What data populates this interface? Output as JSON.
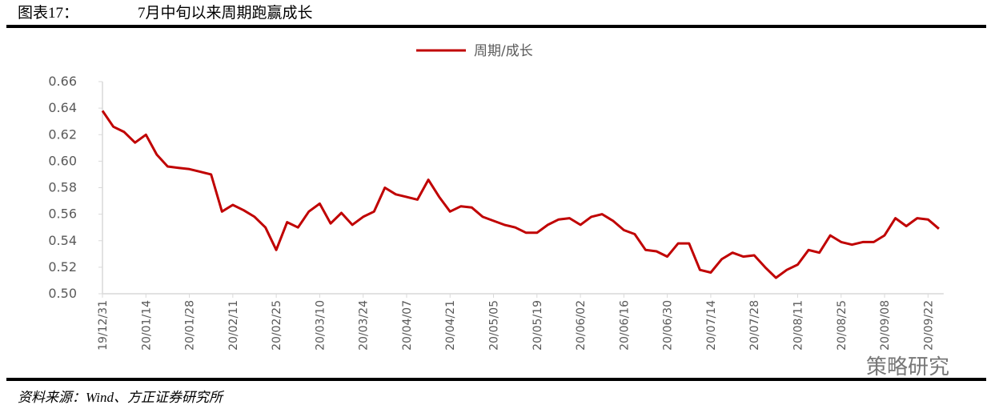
{
  "chart_data": {
    "type": "line",
    "figure_label": "图表17：",
    "title": "7月中旬以来周期跑赢成长",
    "source": "资料来源：Wind、方正证券研究所",
    "watermark": "策略研究",
    "categories": [
      "19/12/31",
      null,
      null,
      null,
      "20/01/14",
      null,
      null,
      null,
      "20/01/28",
      null,
      null,
      null,
      "20/02/11",
      null,
      null,
      null,
      "20/02/25",
      null,
      null,
      null,
      "20/03/10",
      null,
      null,
      null,
      "20/03/24",
      null,
      null,
      null,
      "20/04/07",
      null,
      null,
      null,
      "20/04/21",
      null,
      null,
      null,
      "20/05/05",
      null,
      null,
      null,
      "20/05/19",
      null,
      null,
      null,
      "20/06/02",
      null,
      null,
      null,
      "20/06/16",
      null,
      null,
      null,
      "20/06/30",
      null,
      null,
      null,
      "20/07/14",
      null,
      null,
      null,
      "20/07/28",
      null,
      null,
      null,
      "20/08/11",
      null,
      null,
      null,
      "20/08/25",
      null,
      null,
      null,
      "20/09/08",
      null,
      null,
      null,
      "20/09/22",
      null
    ],
    "series": [
      {
        "name": "周期/成长",
        "color": "#c00000",
        "values": [
          0.638,
          0.626,
          0.622,
          0.614,
          0.62,
          0.605,
          0.596,
          0.595,
          0.594,
          0.592,
          0.59,
          0.562,
          0.567,
          0.563,
          0.558,
          0.55,
          0.533,
          0.554,
          0.55,
          0.562,
          0.568,
          0.553,
          0.561,
          0.552,
          0.558,
          0.562,
          0.58,
          0.575,
          0.573,
          0.571,
          0.586,
          0.573,
          0.562,
          0.566,
          0.565,
          0.558,
          0.555,
          0.552,
          0.55,
          0.546,
          0.546,
          0.552,
          0.556,
          0.557,
          0.552,
          0.558,
          0.56,
          0.555,
          0.548,
          0.545,
          0.533,
          0.532,
          0.528,
          0.538,
          0.538,
          0.518,
          0.516,
          0.526,
          0.531,
          0.528,
          0.529,
          0.52,
          0.512,
          0.518,
          0.522,
          0.533,
          0.531,
          0.544,
          0.539,
          0.537,
          0.539,
          0.539,
          0.544,
          0.557,
          0.551,
          0.557,
          0.556,
          0.549
        ]
      }
    ],
    "ylim": [
      0.5,
      0.66
    ],
    "yticks": [
      {
        "value": 0.5,
        "label": "0.50"
      },
      0.52,
      0.54,
      0.56,
      0.58,
      {
        "value": 0.6,
        "label": "0.60"
      },
      0.62,
      0.64,
      0.66
    ],
    "grid": false,
    "legend": "top"
  }
}
